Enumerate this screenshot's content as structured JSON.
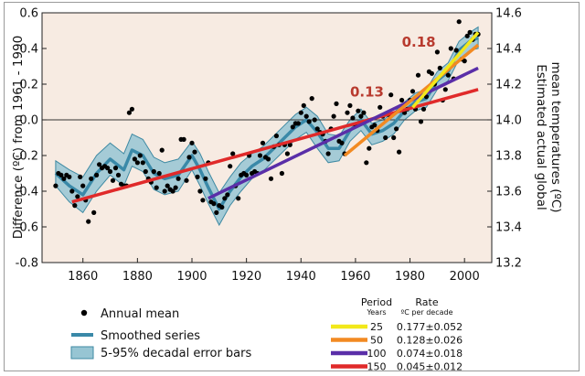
{
  "chart_data": {
    "type": "scatter",
    "xlim": [
      1845,
      2010
    ],
    "ylim": [
      -0.8,
      0.6
    ],
    "y2lim": [
      13.2,
      14.6
    ],
    "x_ticks": [
      "1860",
      "1880",
      "1900",
      "1920",
      "1940",
      "1960",
      "1980",
      "2000"
    ],
    "y_ticks": [
      "0.6",
      "0.4",
      "0.2",
      "0.0",
      "-0.2",
      "-0.4",
      "-0.6",
      "-0.8"
    ],
    "y2_ticks": [
      "14.6",
      "14.4",
      "14.2",
      "14.0",
      "13.8",
      "13.6",
      "13.4",
      "13.2"
    ],
    "ylabel": "Difference (ºC) from 1961 - 1990",
    "y2label_line1": "Estimated actual global",
    "y2label_line2": "mean temperatures (ºC)",
    "grid": false,
    "reference_line_y": 0.0,
    "colors": {
      "plot_bg": "#f7ebe2",
      "band": "#97c5d3",
      "band_edge": "#3f8aa3",
      "smoothed": "#3a89a8",
      "points": "#000000",
      "trend_25": "#f2e81a",
      "trend_50": "#f28a22",
      "trend_100": "#5a2ea8",
      "trend_150": "#e02a2a",
      "annotation": "#b83a2e"
    },
    "annotations": [
      {
        "text": "0.18",
        "x": 1977,
        "y": 0.41
      },
      {
        "text": "0.13",
        "x": 1958,
        "y": 0.13
      }
    ],
    "series": [
      {
        "name": "Annual mean",
        "x": [
          1850,
          1851,
          1852,
          1853,
          1854,
          1855,
          1856,
          1857,
          1858,
          1859,
          1860,
          1861,
          1862,
          1863,
          1864,
          1865,
          1866,
          1867,
          1868,
          1869,
          1870,
          1871,
          1872,
          1873,
          1874,
          1875,
          1876,
          1877,
          1878,
          1879,
          1880,
          1881,
          1882,
          1883,
          1884,
          1885,
          1886,
          1887,
          1888,
          1889,
          1890,
          1891,
          1892,
          1893,
          1894,
          1895,
          1896,
          1897,
          1898,
          1899,
          1900,
          1901,
          1902,
          1903,
          1904,
          1905,
          1906,
          1907,
          1908,
          1909,
          1910,
          1911,
          1912,
          1913,
          1914,
          1915,
          1916,
          1917,
          1918,
          1919,
          1920,
          1921,
          1922,
          1923,
          1924,
          1925,
          1926,
          1927,
          1928,
          1929,
          1930,
          1931,
          1932,
          1933,
          1934,
          1935,
          1936,
          1937,
          1938,
          1939,
          1940,
          1941,
          1942,
          1943,
          1944,
          1945,
          1946,
          1947,
          1948,
          1949,
          1950,
          1951,
          1952,
          1953,
          1954,
          1955,
          1956,
          1957,
          1958,
          1959,
          1960,
          1961,
          1962,
          1963,
          1964,
          1965,
          1966,
          1967,
          1968,
          1969,
          1970,
          1971,
          1972,
          1973,
          1974,
          1975,
          1976,
          1977,
          1978,
          1979,
          1980,
          1981,
          1982,
          1983,
          1984,
          1985,
          1986,
          1987,
          1988,
          1989,
          1990,
          1991,
          1992,
          1993,
          1994,
          1995,
          1996,
          1997,
          1998,
          1999,
          2000,
          2001,
          2002,
          2003,
          2004,
          2005
        ],
        "y": [
          -0.37,
          -0.3,
          -0.31,
          -0.33,
          -0.31,
          -0.32,
          -0.4,
          -0.48,
          -0.43,
          -0.32,
          -0.37,
          -0.45,
          -0.57,
          -0.33,
          -0.52,
          -0.31,
          -0.25,
          -0.27,
          -0.26,
          -0.27,
          -0.29,
          -0.34,
          -0.27,
          -0.31,
          -0.36,
          -0.37,
          -0.37,
          0.04,
          0.06,
          -0.22,
          -0.24,
          -0.2,
          -0.24,
          -0.29,
          -0.33,
          -0.35,
          -0.29,
          -0.38,
          -0.3,
          -0.17,
          -0.4,
          -0.37,
          -0.39,
          -0.4,
          -0.38,
          -0.33,
          -0.11,
          -0.11,
          -0.34,
          -0.21,
          -0.13,
          -0.18,
          -0.32,
          -0.4,
          -0.45,
          -0.33,
          -0.24,
          -0.46,
          -0.47,
          -0.52,
          -0.48,
          -0.49,
          -0.44,
          -0.42,
          -0.26,
          -0.19,
          -0.37,
          -0.44,
          -0.31,
          -0.3,
          -0.31,
          -0.2,
          -0.3,
          -0.29,
          -0.3,
          -0.2,
          -0.13,
          -0.21,
          -0.22,
          -0.33,
          -0.15,
          -0.09,
          -0.14,
          -0.3,
          -0.14,
          -0.19,
          -0.14,
          -0.04,
          -0.02,
          -0.02,
          0.04,
          0.08,
          0.02,
          -0.01,
          0.12,
          0.0,
          -0.05,
          -0.07,
          -0.08,
          -0.12,
          -0.19,
          -0.05,
          0.02,
          0.09,
          -0.12,
          -0.13,
          -0.19,
          0.04,
          0.08,
          0.01,
          -0.03,
          0.05,
          0.02,
          0.04,
          -0.24,
          -0.16,
          -0.04,
          -0.03,
          -0.06,
          0.07,
          0.02,
          -0.1,
          0.03,
          0.14,
          -0.1,
          -0.05,
          -0.18,
          0.11,
          0.04,
          0.06,
          0.11,
          0.16,
          0.06,
          0.25,
          -0.01,
          0.06,
          0.13,
          0.27,
          0.26,
          0.2,
          0.38,
          0.29,
          0.11,
          0.17,
          0.25,
          0.4,
          0.23,
          0.39,
          0.55,
          0.34,
          0.33,
          0.47,
          0.49,
          0.45,
          0.48,
          0.48
        ]
      },
      {
        "name": "Smoothed series",
        "x": [
          1850,
          1855,
          1860,
          1865,
          1870,
          1875,
          1878,
          1882,
          1886,
          1890,
          1895,
          1900,
          1903,
          1906,
          1910,
          1914,
          1918,
          1922,
          1926,
          1930,
          1934,
          1938,
          1942,
          1946,
          1950,
          1954,
          1958,
          1962,
          1966,
          1970,
          1974,
          1978,
          1982,
          1986,
          1990,
          1994,
          1998,
          2002,
          2005
        ],
        "y": [
          -0.3,
          -0.37,
          -0.42,
          -0.3,
          -0.22,
          -0.28,
          -0.17,
          -0.2,
          -0.3,
          -0.33,
          -0.31,
          -0.2,
          -0.28,
          -0.38,
          -0.5,
          -0.4,
          -0.32,
          -0.26,
          -0.22,
          -0.16,
          -0.1,
          -0.04,
          0.0,
          -0.07,
          -0.16,
          -0.16,
          -0.06,
          0.0,
          -0.08,
          -0.06,
          -0.02,
          0.05,
          0.1,
          0.12,
          0.22,
          0.27,
          0.39,
          0.44,
          0.46
        ]
      },
      {
        "name": "5-95% decadal error bars",
        "x": [
          1850,
          1855,
          1860,
          1865,
          1870,
          1875,
          1878,
          1882,
          1886,
          1890,
          1895,
          1900,
          1903,
          1906,
          1910,
          1914,
          1918,
          1922,
          1926,
          1930,
          1934,
          1938,
          1942,
          1946,
          1950,
          1954,
          1958,
          1962,
          1966,
          1970,
          1974,
          1978,
          1982,
          1986,
          1990,
          1994,
          1998,
          2002,
          2005
        ],
        "upper": [
          -0.23,
          -0.28,
          -0.32,
          -0.2,
          -0.13,
          -0.19,
          -0.08,
          -0.11,
          -0.21,
          -0.24,
          -0.22,
          -0.12,
          -0.19,
          -0.29,
          -0.41,
          -0.32,
          -0.24,
          -0.19,
          -0.15,
          -0.09,
          -0.03,
          0.03,
          0.07,
          0.02,
          -0.08,
          -0.09,
          0.0,
          0.06,
          -0.02,
          0.0,
          0.04,
          0.1,
          0.15,
          0.17,
          0.27,
          0.32,
          0.44,
          0.49,
          0.52
        ],
        "lower": [
          -0.37,
          -0.46,
          -0.52,
          -0.4,
          -0.31,
          -0.37,
          -0.26,
          -0.29,
          -0.39,
          -0.42,
          -0.4,
          -0.28,
          -0.37,
          -0.47,
          -0.59,
          -0.48,
          -0.4,
          -0.33,
          -0.29,
          -0.23,
          -0.17,
          -0.11,
          -0.07,
          -0.16,
          -0.24,
          -0.23,
          -0.12,
          -0.06,
          -0.14,
          -0.12,
          -0.08,
          0.0,
          0.05,
          0.07,
          0.17,
          0.22,
          0.34,
          0.39,
          0.4
        ]
      }
    ],
    "trend_lines": [
      {
        "period": "25",
        "rate": "0.177±0.052",
        "x": [
          1981,
          2005
        ],
        "y": [
          0.07,
          0.49
        ]
      },
      {
        "period": "50",
        "rate": "0.128±0.026",
        "x": [
          1956,
          2005
        ],
        "y": [
          -0.2,
          0.42
        ]
      },
      {
        "period": "100",
        "rate": "0.074±0.018",
        "x": [
          1906,
          2005
        ],
        "y": [
          -0.44,
          0.29
        ]
      },
      {
        "period": "150",
        "rate": "0.045±0.012",
        "x": [
          1856,
          2005
        ],
        "y": [
          -0.46,
          0.17
        ]
      }
    ],
    "legend": {
      "items": [
        "Annual mean",
        "Smoothed series",
        "5-95% decadal error bars"
      ],
      "table_header_period": "Period",
      "table_header_years": "Years",
      "table_header_rate": "Rate",
      "table_header_unit": "ºC per decade"
    }
  }
}
